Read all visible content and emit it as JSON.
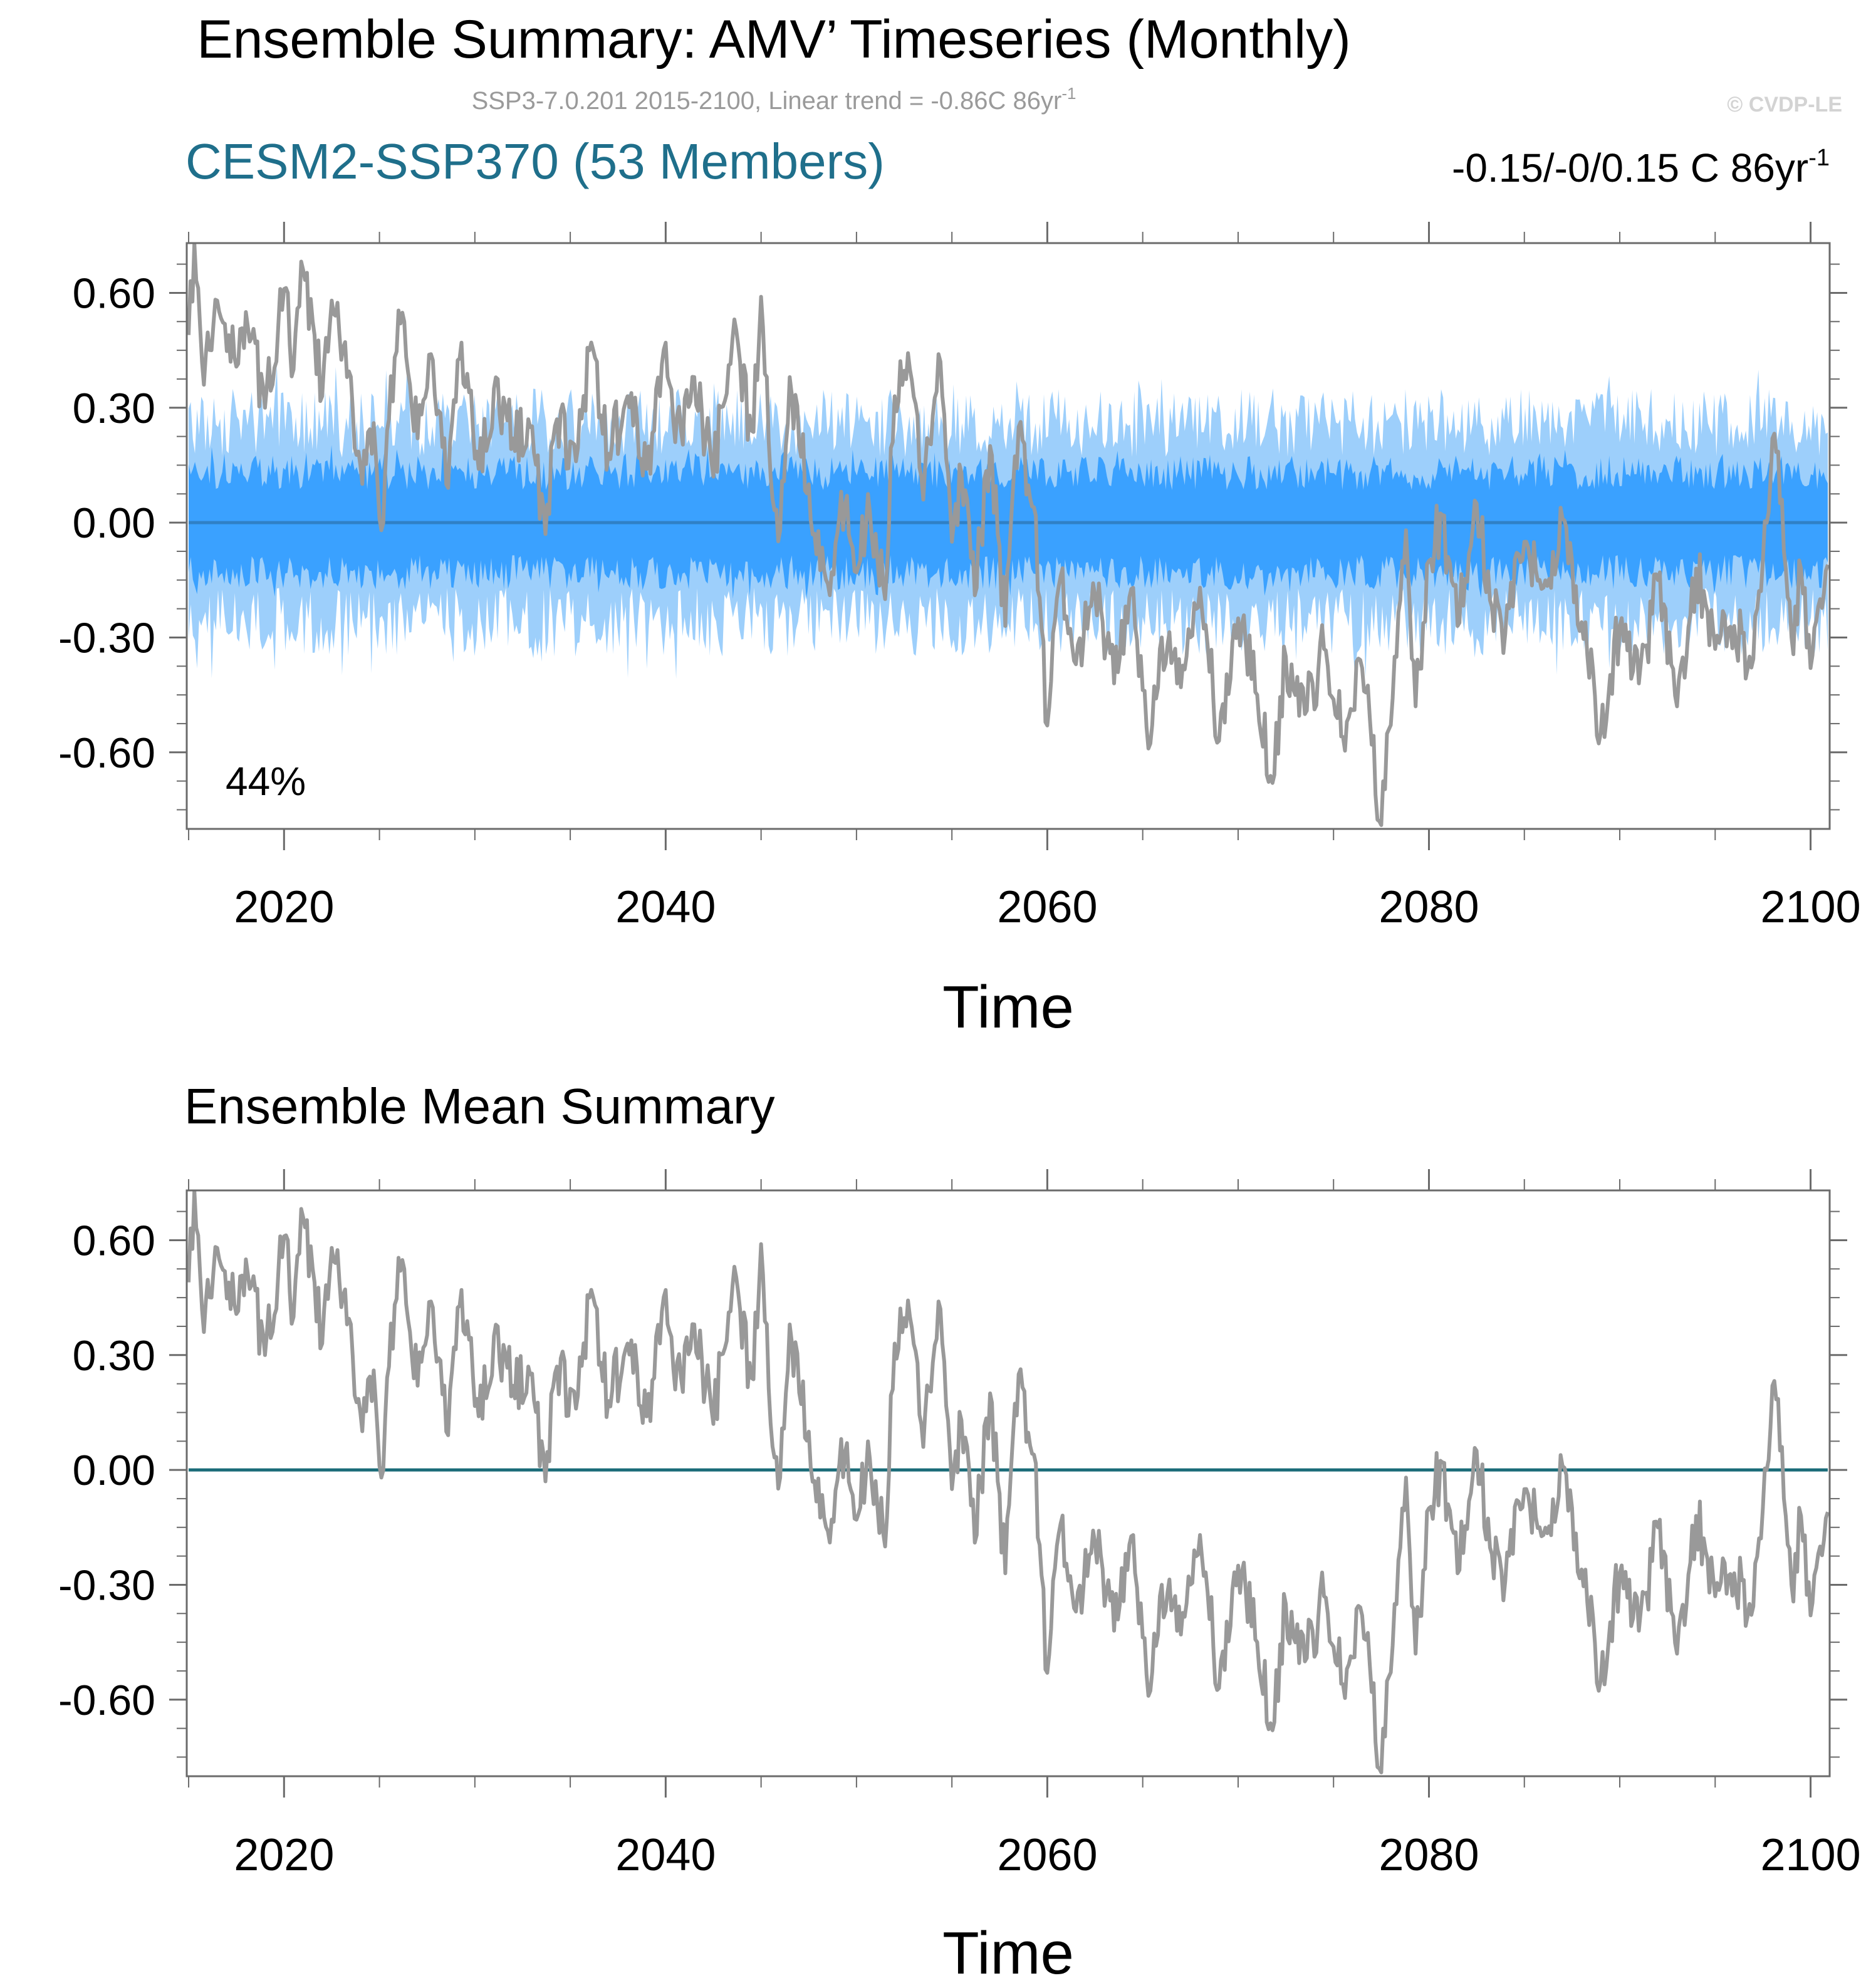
{
  "title": "Ensemble Summary: AMV’ Timeseries (Monthly)",
  "subtitle": {
    "main": "SSP3-7.0.201 2015-2100, Linear trend = -0.86C 86yr",
    "sup": "-1"
  },
  "watermark": "© CVDP-LE",
  "colors": {
    "axis": "#6b6b6b",
    "obs_line": "#999999",
    "inner_band": "#3aa1ff",
    "outer_band": "#9dcffb",
    "zero_line_top": "#2f80c6",
    "zero_line_bottom": "#1a6b78",
    "model_title": "#1f6f8b",
    "subtitle": "#9a9a9a",
    "watermark": "#d3d3d3",
    "text": "#000000"
  },
  "chart_data": [
    {
      "type": "line",
      "panel": "top",
      "title": "CESM2-SSP370 (53 Members)",
      "right_annotation": {
        "main": "-0.15/-0/0.15 C 86yr",
        "sup": "-1"
      },
      "percent_label": "44%",
      "xlabel": "Time",
      "ylabel": "",
      "xlim": [
        2014.9,
        2101.0
      ],
      "ylim": [
        -0.8,
        0.73
      ],
      "x_ticks": [
        2020,
        2040,
        2060,
        2080,
        2100
      ],
      "x_tick_labels": [
        "2020",
        "2040",
        "2060",
        "2080",
        "2100"
      ],
      "y_ticks": [
        0.6,
        0.3,
        0.0,
        -0.3,
        -0.6
      ],
      "y_tick_labels": [
        "0.60",
        "0.30",
        "0.00",
        "-0.30",
        "-0.60"
      ],
      "series": [
        {
          "name": "Ensemble 10-90% range",
          "kind": "band",
          "x_range": [
            2015.0,
            2100.9
          ],
          "lower": -0.26,
          "upper": 0.26,
          "peak": 0.36
        },
        {
          "name": "Ensemble 25-75% range",
          "kind": "band",
          "x_range": [
            2015.0,
            2100.9
          ],
          "lower": -0.13,
          "upper": 0.13,
          "peak": 0.18
        },
        {
          "name": "Ensemble mean",
          "kind": "line",
          "x_range": [
            2015.0,
            2100.9
          ],
          "value": 0.0
        },
        {
          "name": "Observations",
          "kind": "line",
          "x": [
            2015.0,
            2015.3,
            2015.8,
            2016.5,
            2017.2,
            2018.0,
            2019.0,
            2020.0,
            2020.5,
            2021.0,
            2022.0,
            2022.5,
            2023.3,
            2024.0,
            2024.7,
            2025.1,
            2025.5,
            2026.1,
            2027.0,
            2027.7,
            2028.5,
            2029.3,
            2030.2,
            2031.0,
            2032.0,
            2032.8,
            2033.7,
            2034.3,
            2035.3,
            2036.0,
            2037.0,
            2038.0,
            2039.0,
            2040.0,
            2040.5,
            2041.5,
            2042.5,
            2043.5,
            2044.5,
            2045.0,
            2045.5,
            2046.0,
            2046.5,
            2047.5,
            2048.5,
            2049.5,
            2050.0,
            2050.7,
            2051.5,
            2052.0,
            2052.8,
            2053.5,
            2054.3,
            2055.0,
            2055.5,
            2056.2,
            2057.0,
            2057.8,
            2058.5,
            2059.3,
            2060.0,
            2060.7,
            2061.5,
            2062.5,
            2063.5,
            2064.5,
            2065.3,
            2066.0,
            2067.0,
            2068.0,
            2069.0,
            2070.0,
            2071.0,
            2071.8,
            2072.5,
            2073.5,
            2074.5,
            2075.5,
            2076.5,
            2077.0,
            2077.5,
            2078.2,
            2078.8,
            2079.3,
            2080.0,
            2080.7,
            2081.5,
            2082.5,
            2083.3,
            2084.0,
            2085.0,
            2086.0,
            2087.0,
            2088.0,
            2089.0,
            2090.0,
            2091.0,
            2092.0,
            2093.0,
            2094.0,
            2095.0,
            2096.0,
            2096.8,
            2097.5,
            2098.0,
            2098.5,
            2099.0,
            2099.5,
            2100.0,
            2100.5,
            2100.9
          ],
          "y": [
            0.49,
            0.73,
            0.36,
            0.58,
            0.42,
            0.55,
            0.3,
            0.61,
            0.4,
            0.66,
            0.33,
            0.58,
            0.38,
            0.15,
            0.26,
            -0.02,
            0.27,
            0.52,
            0.22,
            0.44,
            0.1,
            0.47,
            0.14,
            0.35,
            0.22,
            0.27,
            -0.03,
            0.27,
            0.16,
            0.45,
            0.18,
            0.33,
            0.14,
            0.47,
            0.21,
            0.38,
            0.12,
            0.48,
            0.24,
            0.59,
            0.12,
            -0.02,
            0.38,
            0.1,
            -0.16,
            0.07,
            -0.13,
            0.03,
            -0.2,
            0.33,
            0.4,
            0.06,
            0.44,
            -0.05,
            0.13,
            -0.19,
            0.2,
            -0.27,
            0.25,
            0.04,
            -0.53,
            -0.14,
            -0.37,
            -0.19,
            -0.42,
            -0.17,
            -0.59,
            -0.3,
            -0.43,
            -0.17,
            -0.57,
            -0.25,
            -0.45,
            -0.68,
            -0.35,
            -0.5,
            -0.33,
            -0.56,
            -0.38,
            -0.58,
            -0.79,
            -0.35,
            -0.02,
            -0.48,
            -0.1,
            0.02,
            -0.27,
            0.05,
            -0.22,
            -0.29,
            -0.05,
            -0.17,
            0.01,
            -0.26,
            -0.55,
            -0.27,
            -0.42,
            -0.15,
            -0.48,
            -0.12,
            -0.33,
            -0.27,
            -0.35,
            -0.1,
            0.22,
            0.06,
            -0.3,
            -0.12,
            -0.38,
            -0.2,
            -0.11
          ]
        }
      ]
    },
    {
      "type": "line",
      "panel": "bottom",
      "title": "Ensemble Mean Summary",
      "xlabel": "Time",
      "ylabel": "",
      "xlim": [
        2014.9,
        2101.0
      ],
      "ylim": [
        -0.8,
        0.73
      ],
      "x_ticks": [
        2020,
        2040,
        2060,
        2080,
        2100
      ],
      "x_tick_labels": [
        "2020",
        "2040",
        "2060",
        "2080",
        "2100"
      ],
      "y_ticks": [
        0.6,
        0.3,
        0.0,
        -0.3,
        -0.6
      ],
      "y_tick_labels": [
        "0.60",
        "0.30",
        "0.00",
        "-0.30",
        "-0.60"
      ],
      "series": [
        {
          "name": "Ensemble mean",
          "kind": "line",
          "x_range": [
            2015.0,
            2100.9
          ],
          "value": 0.0
        },
        {
          "name": "Observations",
          "kind": "line",
          "x": [
            2015.0,
            2015.3,
            2015.8,
            2016.5,
            2017.2,
            2018.0,
            2019.0,
            2020.0,
            2020.5,
            2021.0,
            2022.0,
            2022.5,
            2023.3,
            2024.0,
            2024.7,
            2025.1,
            2025.5,
            2026.1,
            2027.0,
            2027.7,
            2028.5,
            2029.3,
            2030.2,
            2031.0,
            2032.0,
            2032.8,
            2033.7,
            2034.3,
            2035.3,
            2036.0,
            2037.0,
            2038.0,
            2039.0,
            2040.0,
            2040.5,
            2041.5,
            2042.5,
            2043.5,
            2044.5,
            2045.0,
            2045.5,
            2046.0,
            2046.5,
            2047.5,
            2048.5,
            2049.5,
            2050.0,
            2050.7,
            2051.5,
            2052.0,
            2052.8,
            2053.5,
            2054.3,
            2055.0,
            2055.5,
            2056.2,
            2057.0,
            2057.8,
            2058.5,
            2059.3,
            2060.0,
            2060.7,
            2061.5,
            2062.5,
            2063.5,
            2064.5,
            2065.3,
            2066.0,
            2067.0,
            2068.0,
            2069.0,
            2070.0,
            2071.0,
            2071.8,
            2072.5,
            2073.5,
            2074.5,
            2075.5,
            2076.5,
            2077.0,
            2077.5,
            2078.2,
            2078.8,
            2079.3,
            2080.0,
            2080.7,
            2081.5,
            2082.5,
            2083.3,
            2084.0,
            2085.0,
            2086.0,
            2087.0,
            2088.0,
            2089.0,
            2090.0,
            2091.0,
            2092.0,
            2093.0,
            2094.0,
            2095.0,
            2096.0,
            2096.8,
            2097.5,
            2098.0,
            2098.5,
            2099.0,
            2099.5,
            2100.0,
            2100.5,
            2100.9
          ],
          "y": [
            0.49,
            0.73,
            0.36,
            0.58,
            0.42,
            0.55,
            0.3,
            0.61,
            0.4,
            0.66,
            0.33,
            0.58,
            0.38,
            0.15,
            0.26,
            -0.02,
            0.27,
            0.52,
            0.22,
            0.44,
            0.1,
            0.47,
            0.14,
            0.35,
            0.22,
            0.27,
            -0.03,
            0.27,
            0.16,
            0.45,
            0.18,
            0.33,
            0.14,
            0.47,
            0.21,
            0.38,
            0.12,
            0.48,
            0.24,
            0.59,
            0.12,
            -0.02,
            0.38,
            0.1,
            -0.16,
            0.07,
            -0.13,
            0.03,
            -0.2,
            0.33,
            0.4,
            0.06,
            0.44,
            -0.05,
            0.13,
            -0.19,
            0.2,
            -0.27,
            0.25,
            0.04,
            -0.53,
            -0.14,
            -0.37,
            -0.19,
            -0.42,
            -0.17,
            -0.59,
            -0.3,
            -0.43,
            -0.17,
            -0.57,
            -0.25,
            -0.45,
            -0.68,
            -0.35,
            -0.5,
            -0.33,
            -0.56,
            -0.38,
            -0.58,
            -0.79,
            -0.35,
            -0.02,
            -0.48,
            -0.1,
            0.02,
            -0.27,
            0.05,
            -0.22,
            -0.29,
            -0.05,
            -0.17,
            0.01,
            -0.26,
            -0.55,
            -0.27,
            -0.42,
            -0.15,
            -0.48,
            -0.12,
            -0.33,
            -0.27,
            -0.35,
            -0.1,
            0.22,
            0.06,
            -0.3,
            -0.12,
            -0.38,
            -0.2,
            -0.11
          ]
        }
      ]
    }
  ]
}
